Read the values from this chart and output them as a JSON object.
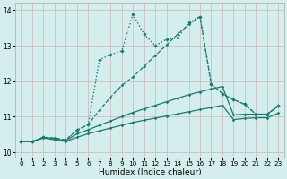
{
  "xlabel": "Humidex (Indice chaleur)",
  "background_color": "#d4eeed",
  "grid_color": "#b8d4d0",
  "line_color": "#1a7a6e",
  "xlim": [
    -0.5,
    23.5
  ],
  "ylim": [
    9.85,
    14.2
  ],
  "xticks": [
    0,
    1,
    2,
    3,
    4,
    5,
    6,
    7,
    8,
    9,
    10,
    11,
    12,
    13,
    14,
    15,
    16,
    17,
    18,
    19,
    20,
    21,
    22,
    23
  ],
  "yticks": [
    10,
    11,
    12,
    13,
    14
  ],
  "series": [
    {
      "x": [
        0,
        1,
        2,
        3,
        4,
        5,
        6,
        7,
        8,
        9,
        10,
        11,
        12,
        13,
        14,
        15,
        16,
        17,
        18,
        19,
        20,
        21,
        22,
        23
      ],
      "y": [
        10.3,
        10.3,
        10.4,
        10.35,
        10.3,
        10.42,
        10.52,
        10.6,
        10.68,
        10.76,
        10.84,
        10.9,
        10.96,
        11.02,
        11.08,
        11.14,
        11.2,
        11.26,
        11.32,
        10.92,
        10.95,
        10.97,
        10.97,
        11.1
      ],
      "linestyle": "-",
      "linewidth": 0.9,
      "marker": "D",
      "markersize": 1.8
    },
    {
      "x": [
        0,
        1,
        2,
        3,
        4,
        5,
        6,
        7,
        8,
        9,
        10,
        11,
        12,
        13,
        14,
        15,
        16,
        17,
        18,
        19,
        20,
        21,
        22,
        23
      ],
      "y": [
        10.3,
        10.3,
        10.42,
        10.38,
        10.32,
        10.52,
        10.63,
        10.76,
        10.88,
        11.0,
        11.12,
        11.22,
        11.32,
        11.42,
        11.52,
        11.62,
        11.7,
        11.78,
        11.85,
        11.05,
        11.07,
        11.07,
        11.07,
        11.3
      ],
      "linestyle": "-",
      "linewidth": 0.9,
      "marker": "D",
      "markersize": 1.8
    },
    {
      "x": [
        0,
        1,
        2,
        3,
        4,
        5,
        6,
        7,
        8,
        9,
        10,
        11,
        12,
        13,
        14,
        15,
        16,
        17,
        18,
        19,
        20,
        21,
        22,
        23
      ],
      "y": [
        10.3,
        10.3,
        10.42,
        10.38,
        10.32,
        10.62,
        10.78,
        12.6,
        12.75,
        12.85,
        13.88,
        13.32,
        13.0,
        13.18,
        13.22,
        13.65,
        13.82,
        11.92,
        11.65,
        11.48,
        11.35,
        11.07,
        11.07,
        11.3
      ],
      "linestyle": ":",
      "linewidth": 1.0,
      "marker": "D",
      "markersize": 2.2
    },
    {
      "x": [
        0,
        1,
        2,
        3,
        4,
        5,
        6,
        7,
        8,
        9,
        10,
        11,
        12,
        13,
        14,
        15,
        16,
        17,
        18,
        19,
        20,
        21,
        22,
        23
      ],
      "y": [
        10.3,
        10.3,
        10.42,
        10.4,
        10.35,
        10.62,
        10.78,
        11.18,
        11.55,
        11.88,
        12.12,
        12.42,
        12.72,
        13.02,
        13.32,
        13.6,
        13.82,
        11.92,
        11.65,
        11.48,
        11.35,
        11.07,
        11.07,
        11.3
      ],
      "linestyle": "--",
      "linewidth": 0.9,
      "marker": "D",
      "markersize": 1.8
    }
  ]
}
